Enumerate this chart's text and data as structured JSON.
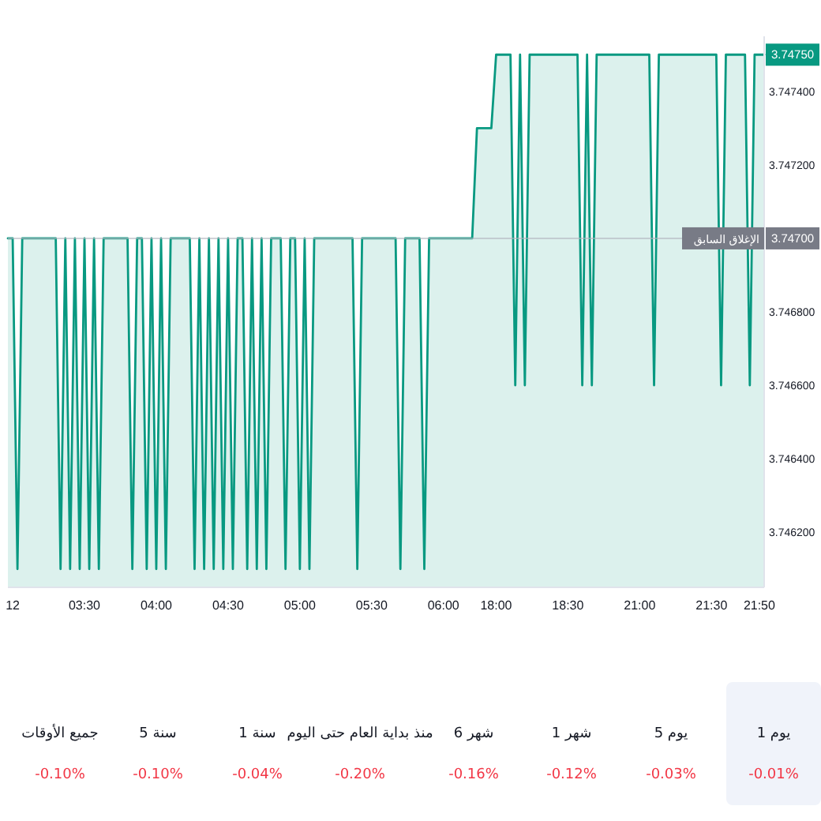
{
  "chart_data": [
    {
      "type": "area",
      "ylim": [
        3.74605,
        3.74755
      ],
      "categories": [
        null,
        "12",
        null,
        null,
        null,
        null,
        null,
        null,
        null,
        null,
        null,
        null,
        null,
        null,
        null,
        null,
        "03:30",
        null,
        null,
        null,
        null,
        null,
        null,
        null,
        null,
        null,
        null,
        null,
        null,
        null,
        null,
        "04:00",
        null,
        null,
        null,
        null,
        null,
        null,
        null,
        null,
        null,
        null,
        null,
        null,
        null,
        null,
        "04:30",
        null,
        null,
        null,
        null,
        null,
        null,
        null,
        null,
        null,
        null,
        null,
        null,
        null,
        null,
        "05:00",
        null,
        null,
        null,
        null,
        null,
        null,
        null,
        null,
        null,
        null,
        null,
        null,
        null,
        null,
        "05:30",
        null,
        null,
        null,
        null,
        null,
        null,
        null,
        null,
        null,
        null,
        null,
        null,
        null,
        null,
        "06:00",
        null,
        null,
        null,
        null,
        null,
        null,
        null,
        null,
        null,
        null,
        "18:00",
        null,
        null,
        null,
        null,
        null,
        null,
        null,
        null,
        null,
        null,
        null,
        null,
        null,
        null,
        "18:30",
        null,
        null,
        null,
        null,
        null,
        null,
        null,
        null,
        null,
        null,
        null,
        null,
        null,
        null,
        "21:00",
        null,
        null,
        null,
        null,
        null,
        null,
        null,
        null,
        null,
        null,
        null,
        null,
        null,
        null,
        "21:30",
        null,
        null,
        null,
        null,
        null,
        null,
        null,
        null,
        null,
        "21:50",
        null
      ],
      "yticks": [
        {
          "value": 3.7462,
          "label": "3.746200"
        },
        {
          "value": 3.7464,
          "label": "3.746400"
        },
        {
          "value": 3.7466,
          "label": "3.746600"
        },
        {
          "value": 3.7468,
          "label": "3.746800"
        },
        {
          "value": 3.7472,
          "label": "3.747200"
        },
        {
          "value": 3.7474,
          "label": "3.747400"
        }
      ],
      "series": [
        {
          "color": "#089981",
          "values": [
            3.747,
            3.747,
            3.7461,
            3.747,
            3.747,
            3.747,
            3.747,
            3.747,
            3.747,
            3.747,
            3.747,
            3.7461,
            3.747,
            3.7461,
            3.747,
            3.7461,
            3.747,
            3.7461,
            3.747,
            3.7461,
            3.747,
            3.747,
            3.747,
            3.747,
            3.747,
            3.747,
            3.7461,
            3.747,
            3.747,
            3.7461,
            3.747,
            3.7461,
            3.747,
            3.7461,
            3.747,
            3.747,
            3.747,
            3.747,
            3.747,
            3.7461,
            3.747,
            3.7461,
            3.747,
            3.7461,
            3.747,
            3.7461,
            3.747,
            3.7461,
            3.747,
            3.747,
            3.7461,
            3.747,
            3.7461,
            3.747,
            3.7461,
            3.747,
            3.747,
            3.747,
            3.7461,
            3.747,
            3.747,
            3.7461,
            3.747,
            3.7461,
            3.747,
            3.747,
            3.747,
            3.747,
            3.747,
            3.747,
            3.747,
            3.747,
            3.747,
            3.7461,
            3.747,
            3.747,
            3.747,
            3.747,
            3.747,
            3.747,
            3.747,
            3.747,
            3.7461,
            3.747,
            3.747,
            3.747,
            3.747,
            3.7461,
            3.747,
            3.747,
            3.747,
            3.747,
            3.747,
            3.747,
            3.747,
            3.747,
            3.747,
            3.747,
            3.7473,
            3.7473,
            3.7473,
            3.7473,
            3.7475,
            3.7475,
            3.7475,
            3.7475,
            3.7466,
            3.7475,
            3.7466,
            3.7475,
            3.7475,
            3.7475,
            3.7475,
            3.7475,
            3.7475,
            3.7475,
            3.7475,
            3.7475,
            3.7475,
            3.7475,
            3.7466,
            3.7475,
            3.7466,
            3.7475,
            3.7475,
            3.7475,
            3.7475,
            3.7475,
            3.7475,
            3.7475,
            3.7475,
            3.7475,
            3.7475,
            3.7475,
            3.7475,
            3.7466,
            3.7475,
            3.7475,
            3.7475,
            3.7475,
            3.7475,
            3.7475,
            3.7475,
            3.7475,
            3.7475,
            3.7475,
            3.7475,
            3.7475,
            3.7475,
            3.7466,
            3.7475,
            3.7475,
            3.7475,
            3.7475,
            3.7475,
            3.7466,
            3.7475,
            3.7475,
            3.7475
          ]
        }
      ],
      "ref_lines": [
        {
          "axis": "y",
          "value": 3.747,
          "label": "الإغلاق السابق",
          "color": "#b2b5be"
        }
      ],
      "annotations": [
        {
          "text": "3.74750",
          "y": 3.7475
        },
        {
          "text": "3.74700",
          "y": 3.747
        }
      ]
    },
    {
      "type": "other",
      "categories": [
        "جميع الأوقات",
        "5 سنة",
        "1 سنة",
        "منذ بداية العام حتى اليوم",
        "6 شهر",
        "1 شهر",
        "5 يوم",
        "1 يوم"
      ],
      "value_labels": [
        "-0.10%",
        "-0.10%",
        "-0.04%",
        "-0.20%",
        "-0.16%",
        "-0.12%",
        "-0.03%",
        "-0.01%"
      ]
    }
  ]
}
